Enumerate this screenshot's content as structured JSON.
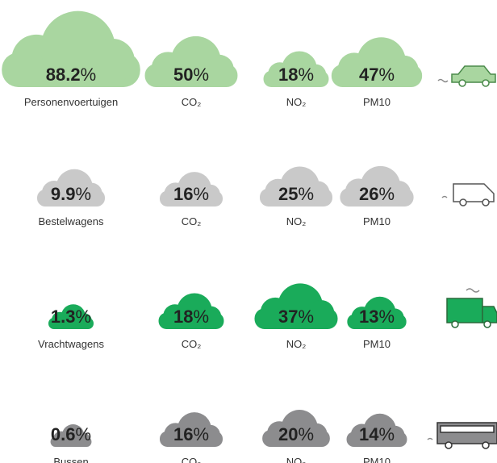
{
  "unit": "%",
  "pollutants": [
    "CO₂",
    "NO₂",
    "PM10"
  ],
  "rows": [
    {
      "label": "Personenvoertuigen",
      "share": 88.2,
      "color": "#a9d6a0",
      "values": [
        50,
        18,
        47
      ]
    },
    {
      "label": "Bestelwagens",
      "share": 9.9,
      "color": "#c9c9c9",
      "values": [
        16,
        25,
        26
      ]
    },
    {
      "label": "Vrachtwagens",
      "share": 1.3,
      "color": "#1aab5a",
      "values": [
        18,
        37,
        13
      ]
    },
    {
      "label": "Bussen",
      "share": 0.6,
      "color": "#8c8c8e",
      "values": [
        16,
        20,
        14
      ]
    }
  ]
}
